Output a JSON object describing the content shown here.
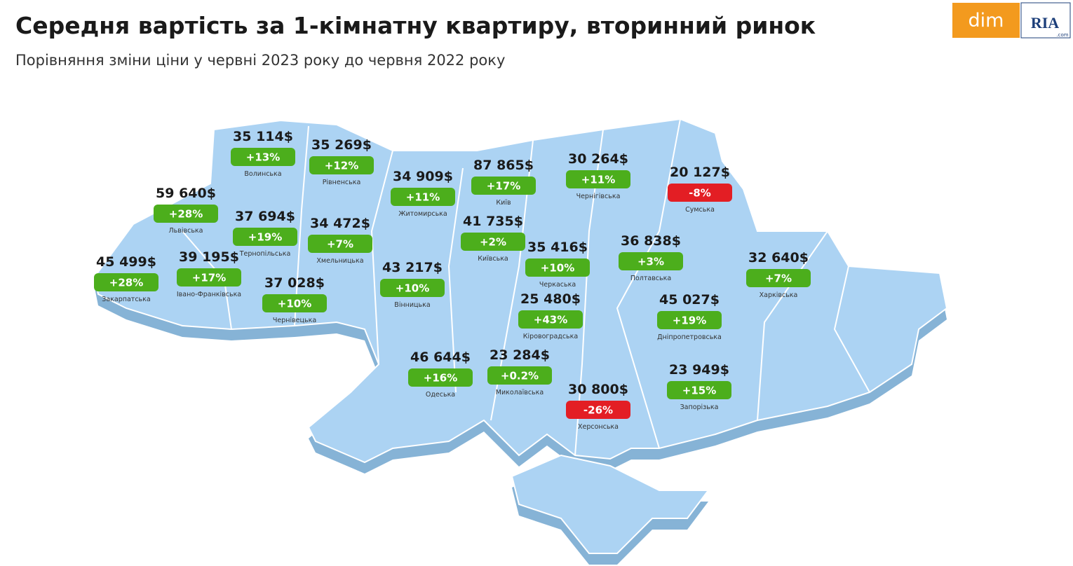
{
  "header": {
    "title": "Середня вартість за 1-кімнатну квартиру, вторинний ринок",
    "subtitle": "Порівняння зміни ціни у червні 2023 року до червня 2022 року"
  },
  "logo": {
    "left": "dim",
    "right": "RIA",
    "right_small": ".com"
  },
  "regions": [
    {
      "name": "Волинська",
      "price": "35 114$",
      "change": "+13%",
      "badge_color": "#4cae1c"
    },
    {
      "name": "Рівненська",
      "price": "35 269$",
      "change": "+12%",
      "badge_color": "#4cae1c"
    },
    {
      "name": "Житомирська",
      "price": "34 909$",
      "change": "+11%",
      "badge_color": "#4cae1c"
    },
    {
      "name": "Київ",
      "price": "87 865$",
      "change": "+17%",
      "badge_color": "#4cae1c"
    },
    {
      "name": "Чернігівська",
      "price": "30 264$",
      "change": "+11%",
      "badge_color": "#4cae1c"
    },
    {
      "name": "Сумська",
      "price": "20 127$",
      "change": "-8%",
      "badge_color": "#e31e24"
    },
    {
      "name": "Львівська",
      "price": "59 640$",
      "change": "+28%",
      "badge_color": "#4cae1c"
    },
    {
      "name": "Тернопільська",
      "price": "37 694$",
      "change": "+19%",
      "badge_color": "#4cae1c"
    },
    {
      "name": "Хмельницька",
      "price": "34 472$",
      "change": "+7%",
      "badge_color": "#4cae1c"
    },
    {
      "name": "Київська",
      "price": "41 735$",
      "change": "+2%",
      "badge_color": "#4cae1c"
    },
    {
      "name": "Черкаська",
      "price": "35 416$",
      "change": "+10%",
      "badge_color": "#4cae1c"
    },
    {
      "name": "Полтавська",
      "price": "36 838$",
      "change": "+3%",
      "badge_color": "#4cae1c"
    },
    {
      "name": "Харківська",
      "price": "32 640$",
      "change": "+7%",
      "badge_color": "#4cae1c"
    },
    {
      "name": "Закарпатська",
      "price": "45 499$",
      "change": "+28%",
      "badge_color": "#4cae1c"
    },
    {
      "name": "Івано-Франківська",
      "price": "39 195$",
      "change": "+17%",
      "badge_color": "#4cae1c"
    },
    {
      "name": "Чернівецька",
      "price": "37 028$",
      "change": "+10%",
      "badge_color": "#4cae1c"
    },
    {
      "name": "Вінницька",
      "price": "43 217$",
      "change": "+10%",
      "badge_color": "#4cae1c"
    },
    {
      "name": "Кіровоградська",
      "price": "25 480$",
      "change": "+43%",
      "badge_color": "#4cae1c"
    },
    {
      "name": "Дніпропетровська",
      "price": "45 027$",
      "change": "+19%",
      "badge_color": "#4cae1c"
    },
    {
      "name": "Одеська",
      "price": "46 644$",
      "change": "+16%",
      "badge_color": "#4cae1c"
    },
    {
      "name": "Миколаївська",
      "price": "23 284$",
      "change": "+0.2%",
      "badge_color": "#4cae1c"
    },
    {
      "name": "Херсонська",
      "price": "30 800$",
      "change": "-26%",
      "badge_color": "#e31e24"
    },
    {
      "name": "Запорізька",
      "price": "23 949$",
      "change": "+15%",
      "badge_color": "#4cae1c"
    }
  ]
}
